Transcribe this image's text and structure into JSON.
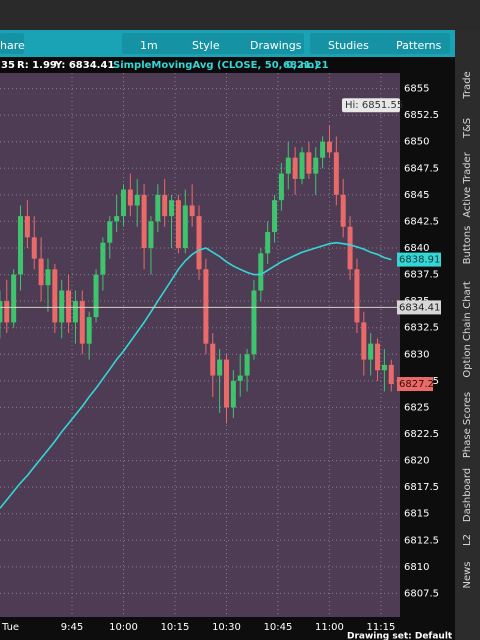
{
  "toolbar": {
    "items": [
      "hare",
      "1m",
      "Style",
      "Drawings",
      "Studies",
      "Patterns"
    ]
  },
  "info_bar": {
    "left": "35",
    "range": "R: 1.99",
    "y": "Y: 6834.41",
    "study": "SimpleMovingAvg (CLOSE, 50, 0, no)",
    "study_value": "6821.21"
  },
  "side_tabs": [
    "Trade",
    "T&S",
    "Active Trader",
    "Buttons",
    "Chart",
    "Option Chain",
    "Phase Scores",
    "Dashboard",
    "L2",
    "News"
  ],
  "footer": {
    "day": "Tue",
    "drawing_set": "Drawing set: Default"
  },
  "chart_data": {
    "type": "candlestick",
    "x": [
      "9:24",
      "9:26",
      "9:28",
      "9:30",
      "9:32",
      "9:34",
      "9:36",
      "9:38",
      "9:40",
      "9:42",
      "9:44",
      "9:46",
      "9:48",
      "9:50",
      "9:52",
      "9:54",
      "9:56",
      "9:58",
      "10:00",
      "10:02",
      "10:04",
      "10:06",
      "10:08",
      "10:10",
      "10:12",
      "10:14",
      "10:16",
      "10:18",
      "10:20",
      "10:22",
      "10:24",
      "10:26",
      "10:28",
      "10:30",
      "10:32",
      "10:34",
      "10:36",
      "10:38",
      "10:40",
      "10:42",
      "10:44",
      "10:46",
      "10:48",
      "10:50",
      "10:52",
      "10:54",
      "10:56",
      "10:58",
      "11:00",
      "11:02",
      "11:04",
      "11:06",
      "11:08",
      "11:10",
      "11:12",
      "11:14",
      "11:16",
      "11:18"
    ],
    "open": [
      6833,
      6835,
      6833,
      6837.5,
      6843,
      6841,
      6839,
      6836.5,
      6838,
      6833,
      6836,
      6833,
      6835,
      6831,
      6833.5,
      6837.5,
      6840.5,
      6842.5,
      6843,
      6845.5,
      6844,
      6845,
      6840,
      6842.5,
      6845,
      6843,
      6844.5,
      6840,
      6844,
      6843,
      6838,
      6831,
      6828,
      6829.5,
      6825,
      6827.5,
      6828,
      6830,
      6836,
      6839.5,
      6841.5,
      6844.5,
      6847,
      6848.5,
      6846.5,
      6849,
      6847,
      6848.5,
      6850,
      6849,
      6845,
      6842,
      6838,
      6833,
      6829.5,
      6831,
      6828.5,
      6829
    ],
    "high": [
      6836,
      6837,
      6838,
      6844,
      6844.5,
      6843,
      6841,
      6839,
      6838.5,
      6837,
      6837.5,
      6836,
      6836,
      6834,
      6838,
      6841,
      6843,
      6845,
      6846,
      6847,
      6846.5,
      6846,
      6843,
      6846,
      6846.5,
      6845,
      6845,
      6845.5,
      6846,
      6844,
      6839,
      6832,
      6830.5,
      6830,
      6828.5,
      6830,
      6830.5,
      6837,
      6840,
      6842.5,
      6845,
      6848,
      6850,
      6849.5,
      6849.5,
      6850,
      6849.5,
      6850.5,
      6851.55,
      6850.5,
      6846.5,
      6843,
      6839,
      6834,
      6832,
      6831.5,
      6830.5,
      6829.5
    ],
    "low": [
      6831.5,
      6832,
      6832.5,
      6836,
      6840,
      6838,
      6835,
      6834,
      6832,
      6831.5,
      6832,
      6831,
      6830,
      6829.5,
      6833,
      6836,
      6839,
      6841.5,
      6842,
      6843,
      6842,
      6838,
      6837.5,
      6841.5,
      6842,
      6840,
      6839.5,
      6839.5,
      6842,
      6837,
      6830,
      6826,
      6824.5,
      6823.5,
      6824,
      6826,
      6826.5,
      6829.5,
      6835,
      6838.5,
      6840.5,
      6843.5,
      6845.5,
      6845,
      6846,
      6846.5,
      6845,
      6847.5,
      6848.5,
      6844,
      6841,
      6837,
      6832,
      6828,
      6828,
      6827.5,
      6826.5,
      6826.5
    ],
    "close": [
      6835,
      6833,
      6837.5,
      6843,
      6841,
      6839,
      6836.5,
      6838,
      6833,
      6836,
      6833,
      6835,
      6831,
      6833.5,
      6837.5,
      6840.5,
      6842.5,
      6843,
      6845.5,
      6844,
      6845,
      6840,
      6842.5,
      6845,
      6843,
      6844.5,
      6840,
      6844,
      6843,
      6838,
      6831,
      6828,
      6829.5,
      6825,
      6827.5,
      6828,
      6830,
      6836,
      6839.5,
      6841.5,
      6844.5,
      6847,
      6848.5,
      6846.5,
      6849,
      6847,
      6848.5,
      6850,
      6849,
      6845,
      6842,
      6838,
      6833,
      6829.5,
      6831,
      6828.5,
      6829,
      6827.2
    ],
    "up_color": "#3fc46e",
    "down_color": "#ea6a6a",
    "sma": {
      "color": "#35d6d6",
      "values": [
        6815.5,
        6816.3,
        6817.1,
        6817.9,
        6818.6,
        6819.4,
        6820.2,
        6821,
        6821.8,
        6822.7,
        6823.5,
        6824.3,
        6825.1,
        6826,
        6826.8,
        6827.7,
        6828.6,
        6829.5,
        6830.3,
        6831.2,
        6832.1,
        6833,
        6834,
        6835,
        6836,
        6837,
        6838,
        6838.8,
        6839.4,
        6839.8,
        6840,
        6839.6,
        6839.2,
        6838.7,
        6838.3,
        6838,
        6837.7,
        6837.5,
        6837.5,
        6837.9,
        6838.3,
        6838.7,
        6839,
        6839.3,
        6839.6,
        6839.8,
        6840,
        6840.2,
        6840.4,
        6840.5,
        6840.4,
        6840.3,
        6840.1,
        6839.9,
        6839.6,
        6839.4,
        6839.1,
        6838.91
      ]
    },
    "high_label": "Hi: 6851.55",
    "crosshair_y": 6834.41,
    "ylim": [
      6805,
      6857.5
    ],
    "yticks": [
      6807.5,
      6810,
      6812.5,
      6815,
      6817.5,
      6820,
      6822.5,
      6825,
      6827.5,
      6830,
      6832.5,
      6835,
      6837.5,
      6840,
      6842.5,
      6845,
      6847.5,
      6850,
      6852.5,
      6855
    ],
    "xticks": [
      "9:45",
      "10:00",
      "10:15",
      "10:30",
      "10:45",
      "11:00",
      "11:15"
    ],
    "grid": true
  }
}
